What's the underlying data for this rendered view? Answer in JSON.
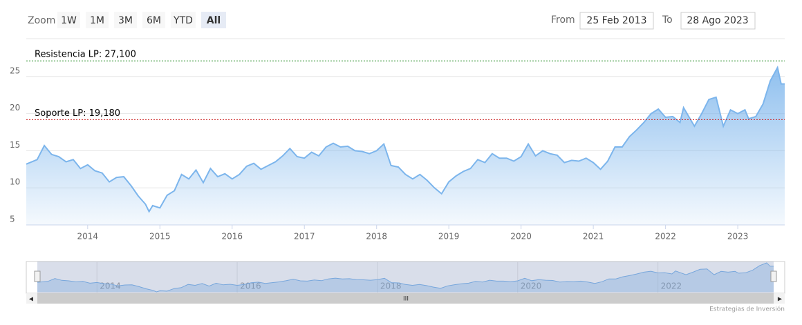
{
  "chart_data": {
    "type": "area",
    "zoom": {
      "label": "Zoom",
      "buttons": [
        "1W",
        "1M",
        "3M",
        "6M",
        "YTD",
        "All"
      ],
      "selected": 5
    },
    "range": {
      "from_label": "From",
      "from": "25 Feb 2013",
      "to_label": "To",
      "to": "28 Ago 2023"
    },
    "x": [
      2013.15,
      2013.3,
      2013.4,
      2013.5,
      2013.6,
      2013.7,
      2013.8,
      2013.9,
      2014.0,
      2014.1,
      2014.2,
      2014.3,
      2014.4,
      2014.5,
      2014.6,
      2014.7,
      2014.8,
      2014.85,
      2014.9,
      2015.0,
      2015.1,
      2015.2,
      2015.3,
      2015.4,
      2015.5,
      2015.6,
      2015.7,
      2015.8,
      2015.9,
      2016.0,
      2016.1,
      2016.2,
      2016.3,
      2016.4,
      2016.5,
      2016.6,
      2016.7,
      2016.8,
      2016.9,
      2017.0,
      2017.1,
      2017.2,
      2017.3,
      2017.4,
      2017.5,
      2017.6,
      2017.7,
      2017.8,
      2017.9,
      2018.0,
      2018.1,
      2018.2,
      2018.3,
      2018.4,
      2018.5,
      2018.6,
      2018.7,
      2018.8,
      2018.9,
      2019.0,
      2019.1,
      2019.2,
      2019.3,
      2019.4,
      2019.5,
      2019.6,
      2019.7,
      2019.8,
      2019.9,
      2020.0,
      2020.1,
      2020.2,
      2020.3,
      2020.4,
      2020.5,
      2020.6,
      2020.7,
      2020.8,
      2020.9,
      2021.0,
      2021.1,
      2021.2,
      2021.3,
      2021.4,
      2021.5,
      2021.6,
      2021.7,
      2021.8,
      2021.9,
      2022.0,
      2022.1,
      2022.2,
      2022.25,
      2022.4,
      2022.5,
      2022.6,
      2022.7,
      2022.8,
      2022.9,
      2023.0,
      2023.1,
      2023.15,
      2023.25,
      2023.35,
      2023.45,
      2023.55,
      2023.6,
      2023.65
    ],
    "series": [
      {
        "color": "#7cb5ec",
        "values": [
          13.2,
          13.8,
          15.7,
          14.5,
          14.2,
          13.5,
          13.8,
          12.6,
          13.1,
          12.3,
          12.0,
          10.8,
          11.4,
          11.5,
          10.3,
          8.9,
          7.8,
          6.8,
          7.6,
          7.3,
          9.0,
          9.6,
          11.8,
          11.2,
          12.4,
          10.7,
          12.6,
          11.5,
          11.9,
          11.2,
          11.8,
          12.9,
          13.3,
          12.5,
          13.0,
          13.5,
          14.3,
          15.3,
          14.2,
          14.0,
          14.8,
          14.3,
          15.5,
          16.0,
          15.5,
          15.6,
          15.0,
          14.9,
          14.6,
          15.0,
          15.9,
          13.0,
          12.8,
          11.8,
          11.2,
          11.8,
          11.0,
          10.0,
          9.2,
          10.8,
          11.6,
          12.2,
          12.6,
          13.8,
          13.4,
          14.6,
          14.0,
          14.0,
          13.6,
          14.2,
          15.9,
          14.3,
          15.0,
          14.6,
          14.4,
          13.4,
          13.7,
          13.6,
          14.0,
          13.4,
          12.5,
          13.6,
          15.5,
          15.5,
          16.9,
          17.8,
          18.8,
          20.0,
          20.6,
          19.5,
          19.6,
          18.8,
          20.8,
          18.3,
          20.0,
          21.9,
          22.2,
          18.3,
          20.5,
          20.0,
          20.5,
          19.3,
          19.6,
          21.3,
          24.4,
          26.2,
          24.0,
          24.0
        ]
      }
    ],
    "xlim": [
      2013.15,
      2023.65
    ],
    "xticks": [
      2014,
      2015,
      2016,
      2017,
      2018,
      2019,
      2020,
      2021,
      2022,
      2023
    ],
    "ylim": [
      5,
      30
    ],
    "yticks": [
      5,
      10,
      15,
      20,
      25
    ],
    "grid": true,
    "plot_lines": [
      {
        "value": 27.1,
        "label": "Resistencia LP: 27,100",
        "color": "#228b22"
      },
      {
        "value": 19.18,
        "label": "Soporte LP: 19,180",
        "color": "#cc2222"
      }
    ],
    "navigator": {
      "xticks": [
        2014,
        2016,
        2018,
        2020,
        2022
      ]
    },
    "credits": "Estrategias de Inversión"
  }
}
